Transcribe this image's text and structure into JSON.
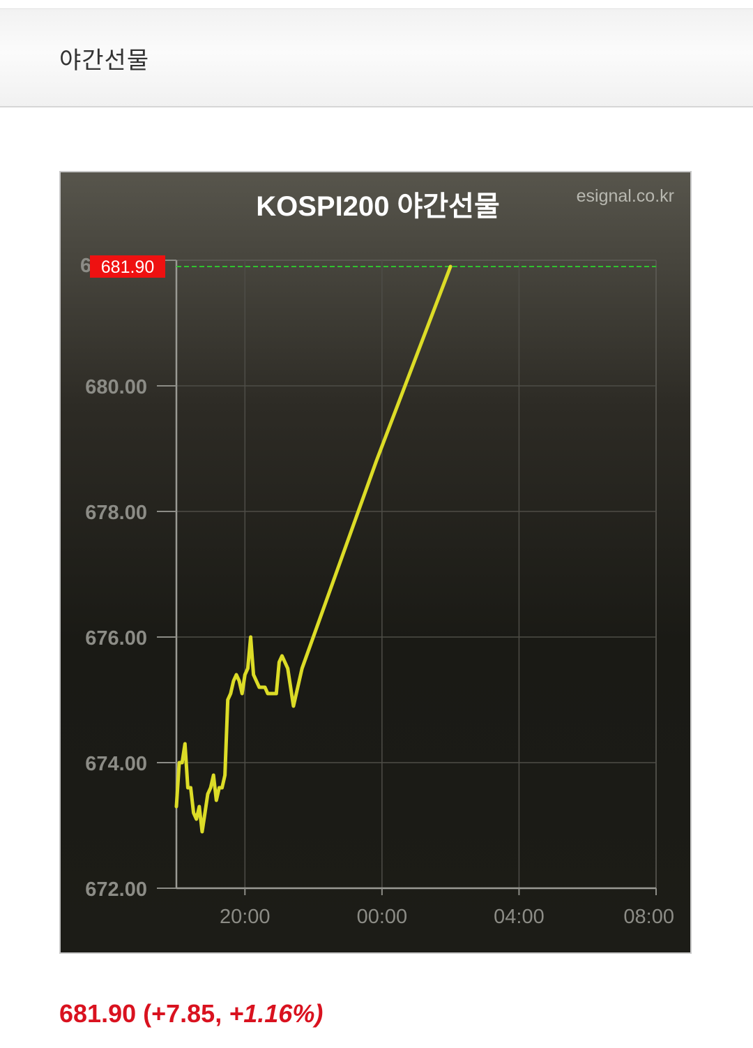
{
  "header": {
    "title": "야간선물"
  },
  "colors": {
    "line": "#dcdc27",
    "current_price_line": "#2fc22f",
    "badge_bg": "#ee1111",
    "badge_text": "#ffffff",
    "summary_text": "#d9121f"
  },
  "chart_data": {
    "type": "line",
    "title": "KOSPI200 야간선물",
    "watermark": "esignal.co.kr",
    "xlabel": "",
    "ylabel": "",
    "x_ticks": [
      "20:00",
      "00:00",
      "04:00",
      "08:00"
    ],
    "y_ticks": [
      "672.00",
      "674.00",
      "676.00",
      "678.00",
      "680.00"
    ],
    "ylim": [
      672.0,
      682.0
    ],
    "x_range": [
      "18:00",
      "08:00"
    ],
    "grid": true,
    "current_price": 681.9,
    "current_price_label": "681.90",
    "series": [
      {
        "x": [
          "18:00",
          "18:05",
          "18:10",
          "18:15",
          "18:20",
          "18:25",
          "18:30",
          "18:35",
          "18:40",
          "18:45",
          "18:50",
          "18:55",
          "19:00",
          "19:05",
          "19:10",
          "19:15",
          "19:20",
          "19:25",
          "19:30",
          "19:35",
          "19:40",
          "19:45",
          "19:50",
          "19:55",
          "20:00",
          "20:05",
          "20:10",
          "20:15",
          "20:20",
          "20:25",
          "20:30",
          "20:35",
          "20:40",
          "20:45",
          "20:50",
          "20:55",
          "21:00",
          "21:05",
          "21:10",
          "21:15",
          "21:20",
          "21:25",
          "21:30",
          "21:35",
          "21:40",
          "23:50",
          "02:00"
        ],
        "values": [
          673.3,
          674.0,
          674.0,
          674.3,
          673.6,
          673.6,
          673.2,
          673.1,
          673.3,
          672.9,
          673.2,
          673.5,
          673.6,
          673.8,
          673.4,
          673.6,
          673.6,
          673.8,
          675.0,
          675.1,
          675.3,
          675.4,
          675.3,
          675.1,
          675.4,
          675.5,
          676.0,
          675.4,
          675.3,
          675.2,
          675.2,
          675.2,
          675.1,
          675.1,
          675.1,
          675.1,
          675.6,
          675.7,
          675.6,
          675.5,
          675.2,
          674.9,
          675.1,
          675.3,
          675.5,
          678.8,
          681.9
        ]
      }
    ]
  },
  "summary": {
    "price": "681.90",
    "change": "(+7.85,",
    "change_pct": "+1.16%)"
  }
}
